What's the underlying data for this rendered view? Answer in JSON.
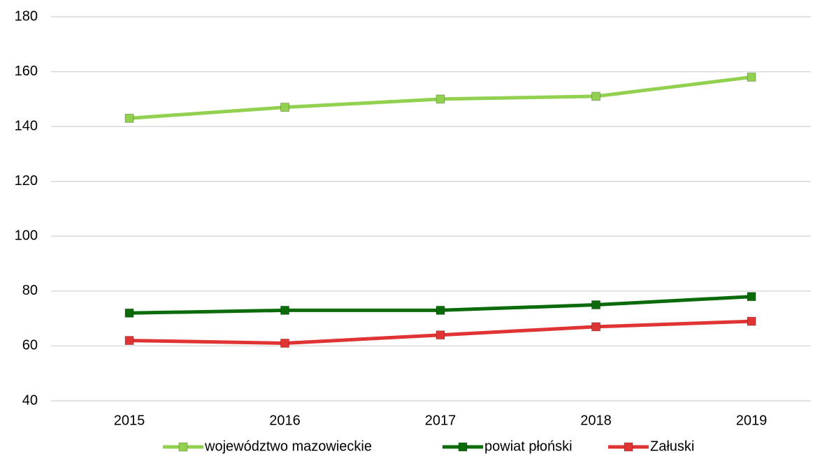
{
  "chart_data": {
    "type": "line",
    "categories": [
      "2015",
      "2016",
      "2017",
      "2018",
      "2019"
    ],
    "series": [
      {
        "name": "województwo mazowieckie",
        "color": "#92d050",
        "values": [
          143,
          147,
          150,
          151,
          158
        ]
      },
      {
        "name": "powiat płoński",
        "color": "#0b6b0b",
        "values": [
          72,
          73,
          73,
          75,
          78
        ]
      },
      {
        "name": "Załuski",
        "color": "#e03333",
        "values": [
          62,
          61,
          64,
          67,
          69
        ]
      }
    ],
    "ylim": [
      40,
      180
    ],
    "yticks": [
      40,
      60,
      80,
      100,
      120,
      140,
      160,
      180
    ],
    "grid": true,
    "legend": "bottom"
  }
}
